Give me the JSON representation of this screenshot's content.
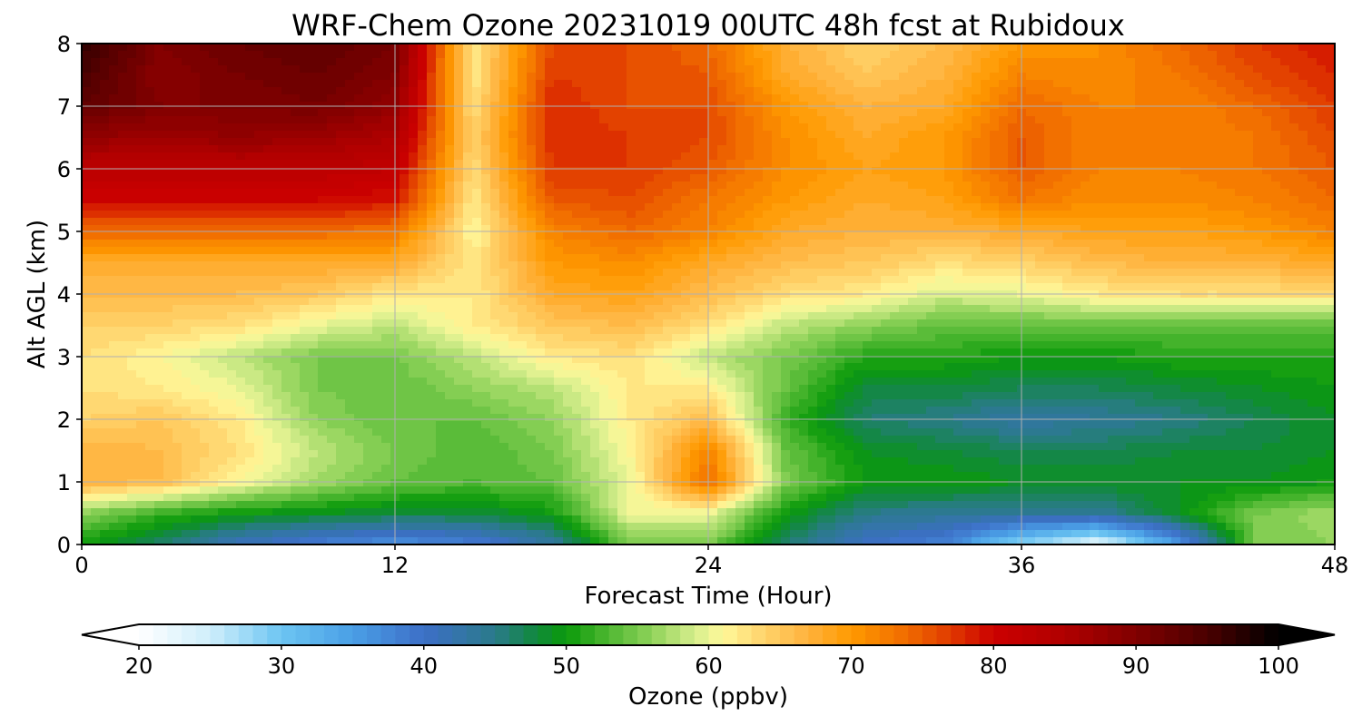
{
  "chart_data": {
    "type": "heatmap",
    "title": "WRF-Chem Ozone  20231019 00UTC 48h fcst at Rubidoux",
    "xlabel": "Forecast Time (Hour)",
    "ylabel": "Alt AGL (km)",
    "xlim": [
      0,
      48
    ],
    "ylim": [
      0,
      8
    ],
    "xticks": [
      0,
      12,
      24,
      36,
      48
    ],
    "yticks": [
      0,
      1,
      2,
      3,
      4,
      5,
      6,
      7,
      8
    ],
    "grid": true,
    "colorbar": {
      "label": "Ozone  (ppbv)",
      "min": 20,
      "max": 100,
      "step": 1,
      "ticks": [
        20,
        30,
        40,
        50,
        60,
        70,
        80,
        90,
        100
      ],
      "extend": "both",
      "orientation": "horizontal",
      "placement": "bottom",
      "color_stops": [
        [
          20,
          "#ffffff"
        ],
        [
          25,
          "#cfeefb"
        ],
        [
          30,
          "#6cc5f2"
        ],
        [
          35,
          "#4a9fe6"
        ],
        [
          40,
          "#3d6fc7"
        ],
        [
          45,
          "#2a7a8a"
        ],
        [
          48,
          "#108a3a"
        ],
        [
          50,
          "#0a9a0a"
        ],
        [
          53,
          "#4fb832"
        ],
        [
          56,
          "#8fd25a"
        ],
        [
          59,
          "#d6ee8c"
        ],
        [
          61,
          "#fff89a"
        ],
        [
          64,
          "#ffd26a"
        ],
        [
          67,
          "#ffb23c"
        ],
        [
          70,
          "#ff9a00"
        ],
        [
          74,
          "#f06a00"
        ],
        [
          77,
          "#e03a00"
        ],
        [
          80,
          "#cc0000"
        ],
        [
          85,
          "#b00000"
        ],
        [
          90,
          "#800000"
        ],
        [
          95,
          "#4a0000"
        ],
        [
          100,
          "#000000"
        ]
      ]
    },
    "grid_x_hours": [
      0,
      3,
      6,
      9,
      12,
      15,
      18,
      21,
      24,
      27,
      30,
      33,
      36,
      39,
      42,
      45,
      48
    ],
    "grid_y_km": [
      0,
      0.5,
      1,
      1.5,
      2,
      2.5,
      3,
      3.5,
      4,
      4.5,
      5,
      5.5,
      6,
      6.5,
      7,
      7.5,
      8
    ],
    "ozone_ppbv": [
      [
        50,
        46,
        41,
        38,
        36,
        38,
        43,
        55,
        55,
        46,
        40,
        38,
        28,
        22,
        35,
        55,
        56
      ],
      [
        56,
        52,
        50,
        49,
        48,
        48,
        50,
        60,
        60,
        50,
        45,
        44,
        44,
        44,
        49,
        55,
        57
      ],
      [
        67,
        66,
        61,
        57,
        54,
        53,
        54,
        60,
        74,
        55,
        50,
        50,
        49,
        49,
        49,
        49,
        50
      ],
      [
        67,
        66,
        63,
        58,
        55,
        53,
        55,
        61,
        72,
        54,
        49,
        48,
        47,
        47,
        48,
        48,
        49
      ],
      [
        64,
        65,
        62,
        56,
        54,
        54,
        56,
        62,
        66,
        52,
        46,
        45,
        43,
        44,
        45,
        47,
        49
      ],
      [
        63,
        62,
        60,
        55,
        54,
        56,
        58,
        62,
        62,
        54,
        48,
        48,
        47,
        47,
        48,
        49,
        50
      ],
      [
        63,
        61,
        58,
        55,
        55,
        58,
        62,
        63,
        58,
        55,
        51,
        51,
        50,
        50,
        51,
        51,
        51
      ],
      [
        64,
        64,
        63,
        60,
        58,
        62,
        65,
        66,
        63,
        58,
        56,
        54,
        54,
        54,
        54,
        54,
        54
      ],
      [
        66,
        66,
        66,
        65,
        62,
        62,
        68,
        69,
        66,
        63,
        62,
        59,
        60,
        62,
        63,
        63,
        63
      ],
      [
        68,
        68,
        68,
        68,
        68,
        62,
        70,
        71,
        68,
        66,
        65,
        63,
        64,
        66,
        67,
        67,
        68
      ],
      [
        74,
        74,
        74,
        74,
        73,
        61,
        72,
        74,
        72,
        68,
        67,
        67,
        68,
        69,
        69,
        70,
        72
      ],
      [
        80,
        80,
        80,
        80,
        79,
        62,
        75,
        76,
        73,
        70,
        68,
        69,
        73,
        71,
        71,
        72,
        74
      ],
      [
        83,
        83,
        83,
        83,
        82,
        63,
        77,
        77,
        75,
        71,
        69,
        70,
        75,
        72,
        72,
        73,
        75
      ],
      [
        88,
        87,
        88,
        87,
        85,
        64,
        78,
        77,
        76,
        71,
        68,
        70,
        75,
        72,
        72,
        73,
        76
      ],
      [
        93,
        90,
        90,
        91,
        88,
        63,
        78,
        76,
        76,
        70,
        67,
        68,
        74,
        72,
        72,
        74,
        77
      ],
      [
        95,
        89,
        91,
        92,
        90,
        62,
        77,
        76,
        75,
        68,
        65,
        67,
        72,
        71,
        73,
        76,
        78
      ],
      [
        97,
        90,
        92,
        93,
        91,
        62,
        76,
        76,
        74,
        67,
        64,
        66,
        70,
        71,
        74,
        77,
        79
      ]
    ]
  }
}
